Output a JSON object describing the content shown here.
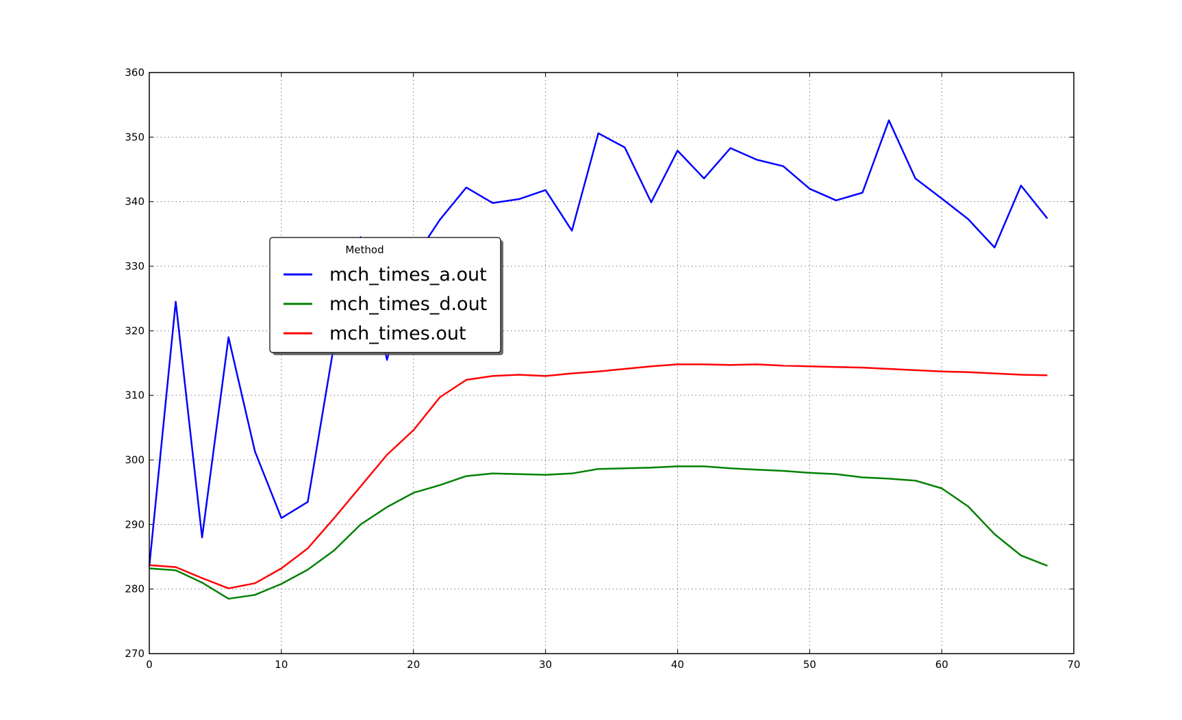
{
  "chart_data": {
    "type": "line",
    "title": "",
    "xlabel": "",
    "ylabel": "",
    "xlim": [
      0,
      70
    ],
    "ylim": [
      270,
      360
    ],
    "xticks": [
      0,
      10,
      20,
      30,
      40,
      50,
      60,
      70
    ],
    "yticks": [
      270,
      280,
      290,
      300,
      310,
      320,
      330,
      340,
      350,
      360
    ],
    "grid": true,
    "legend": {
      "title": "Method",
      "placement": "upper-left-center"
    },
    "x": [
      0,
      2,
      4,
      6,
      8,
      10,
      12,
      14,
      16,
      18,
      20,
      22,
      24,
      26,
      28,
      30,
      32,
      34,
      36,
      38,
      40,
      42,
      44,
      46,
      48,
      50,
      52,
      54,
      56,
      58,
      60,
      62,
      64,
      66,
      68
    ],
    "series": [
      {
        "name": "mch_times_a.out",
        "color": "#0000ff",
        "values": [
          283.5,
          324.5,
          288.0,
          319.0,
          301.3,
          291.0,
          293.5,
          318.0,
          334.5,
          315.5,
          331.0,
          337.2,
          342.2,
          339.8,
          340.4,
          341.8,
          335.5,
          350.6,
          348.4,
          339.9,
          347.9,
          343.6,
          348.3,
          346.5,
          345.5,
          342.0,
          340.2,
          341.4,
          352.6,
          343.6,
          340.5,
          337.3,
          332.9,
          342.5,
          337.4
        ]
      },
      {
        "name": "mch_times_d.out",
        "color": "#008000",
        "values": [
          283.2,
          282.9,
          281.0,
          278.5,
          279.1,
          280.8,
          283.0,
          286.0,
          290.0,
          292.7,
          294.9,
          296.1,
          297.5,
          297.9,
          297.8,
          297.7,
          297.9,
          298.6,
          298.7,
          298.8,
          299.0,
          299.0,
          298.7,
          298.5,
          298.3,
          298.0,
          297.8,
          297.3,
          297.1,
          296.8,
          295.6,
          292.8,
          288.5,
          285.2,
          283.6
        ]
      },
      {
        "name": "mch_times.out",
        "color": "#ff0000",
        "values": [
          283.7,
          283.4,
          281.7,
          280.1,
          280.9,
          283.2,
          286.3,
          291.0,
          295.9,
          300.8,
          304.6,
          309.7,
          312.4,
          313.0,
          313.2,
          313.0,
          313.4,
          313.7,
          314.1,
          314.5,
          314.8,
          314.8,
          314.7,
          314.8,
          314.6,
          314.5,
          314.4,
          314.3,
          314.1,
          313.9,
          313.7,
          313.6,
          313.4,
          313.2,
          313.1
        ]
      }
    ]
  }
}
